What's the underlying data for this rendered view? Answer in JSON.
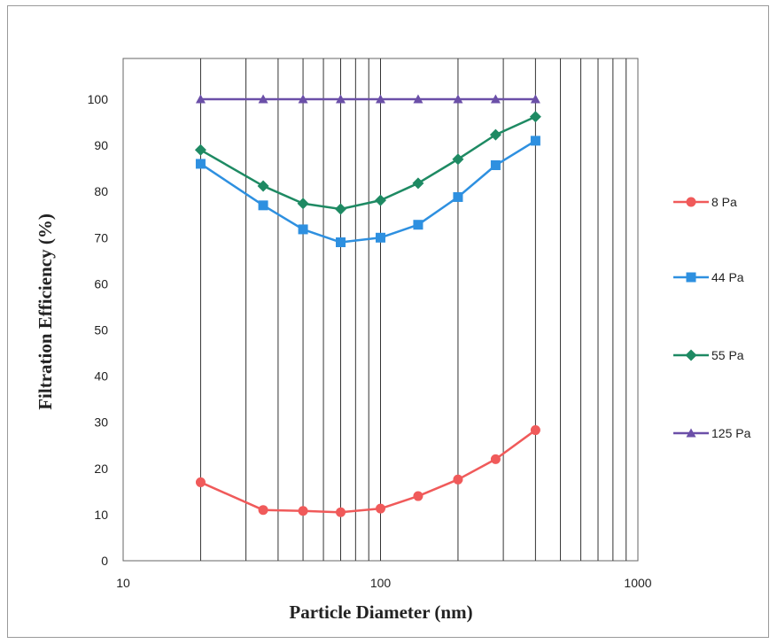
{
  "chart_data": {
    "type": "line",
    "x_scale": "log",
    "xlabel": "Particle Diameter (nm)",
    "ylabel": "Filtration Efficiency  (%)",
    "xlim": [
      10,
      1000
    ],
    "ylim": [
      0,
      100
    ],
    "x_ticks": [
      "10",
      "100",
      "1000"
    ],
    "y_ticks": [
      "0",
      "10",
      "20",
      "30",
      "40",
      "50",
      "60",
      "70",
      "80",
      "90",
      "100"
    ],
    "grid": "vertical",
    "legend": "right",
    "x": [
      20,
      35,
      50,
      70,
      100,
      140,
      200,
      280,
      400
    ],
    "series": [
      {
        "name": "8 Pa",
        "color": "#f05a5a",
        "marker": "circle",
        "values": [
          17,
          11,
          10.8,
          10.5,
          11.3,
          14,
          17.6,
          22,
          28.3
        ]
      },
      {
        "name": "44 Pa",
        "color": "#2e90e0",
        "marker": "square",
        "values": [
          86,
          77,
          71.8,
          69,
          70,
          72.8,
          78.8,
          85.7,
          91
        ]
      },
      {
        "name": "55 Pa",
        "color": "#1e8a63",
        "marker": "diamond",
        "values": [
          89,
          81.2,
          77.4,
          76.2,
          78.1,
          81.8,
          87,
          92.3,
          96.2
        ]
      },
      {
        "name": "125 Pa",
        "color": "#6b4fa8",
        "marker": "triangle",
        "values": [
          100,
          100,
          100,
          100,
          100,
          100,
          100,
          100,
          100
        ]
      }
    ]
  }
}
